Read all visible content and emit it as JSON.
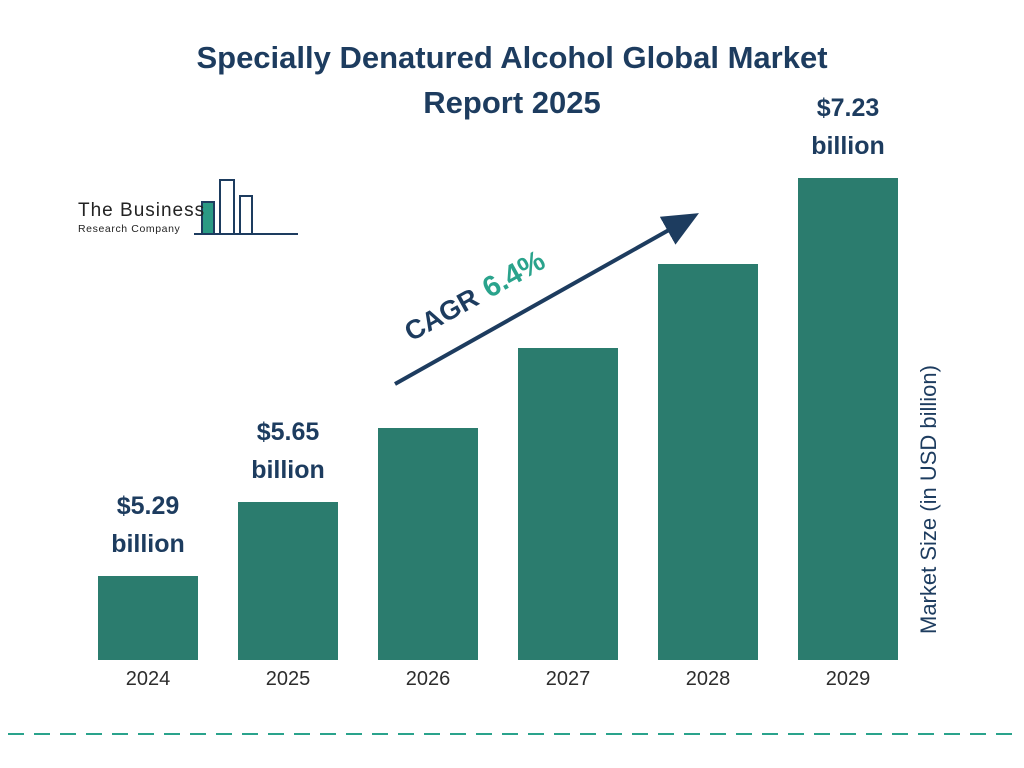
{
  "title": {
    "line1": "Specially Denatured Alcohol Global Market",
    "line2": "Report 2025"
  },
  "logo": {
    "line1": "The Business",
    "line2": "Research Company"
  },
  "cagr": {
    "prefix": "CAGR",
    "value": "6.4%"
  },
  "y_axis_label": "Market Size (in USD billion)",
  "colors": {
    "bar": "#2b7c6e",
    "navy": "#1d3c5f",
    "teal_accent": "#2aa38c"
  },
  "chart_data": {
    "type": "bar",
    "title": "Specially Denatured Alcohol Global Market Report 2025",
    "categories": [
      "2024",
      "2025",
      "2026",
      "2027",
      "2028",
      "2029"
    ],
    "values": [
      5.29,
      5.65,
      6.01,
      6.4,
      6.81,
      7.23
    ],
    "labels_shown": [
      true,
      true,
      false,
      false,
      false,
      true
    ],
    "value_label_suffix": "billion",
    "value_label_prefix": "$",
    "xlabel": "",
    "ylabel": "Market Size (in USD billion)",
    "annotation": "CAGR 6.4%",
    "grid": false,
    "legend": false,
    "bar_color": "#2b7c6e"
  }
}
